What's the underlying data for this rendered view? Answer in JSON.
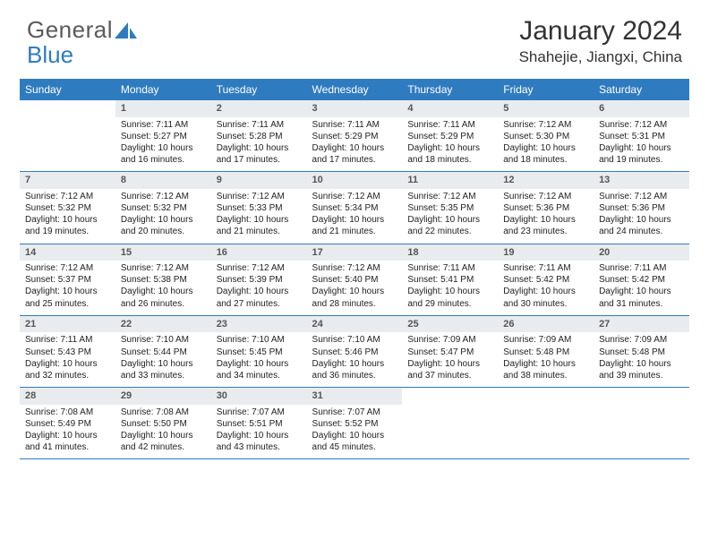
{
  "brand": {
    "part1": "General",
    "part2": "Blue",
    "text_color": "#5a5a5a",
    "accent_color": "#2f7bbf"
  },
  "title": "January 2024",
  "location": "Shahejie, Jiangxi, China",
  "header_bg": "#2f7bbf",
  "header_text_color": "#ffffff",
  "daynum_bg": "#e9ecef",
  "cell_border_color": "#2f7bbf",
  "font_family": "Arial",
  "day_headers": [
    "Sunday",
    "Monday",
    "Tuesday",
    "Wednesday",
    "Thursday",
    "Friday",
    "Saturday"
  ],
  "weeks": [
    [
      {
        "n": "",
        "sr": "",
        "ss": "",
        "dl": ""
      },
      {
        "n": "1",
        "sr": "Sunrise: 7:11 AM",
        "ss": "Sunset: 5:27 PM",
        "dl": "Daylight: 10 hours and 16 minutes."
      },
      {
        "n": "2",
        "sr": "Sunrise: 7:11 AM",
        "ss": "Sunset: 5:28 PM",
        "dl": "Daylight: 10 hours and 17 minutes."
      },
      {
        "n": "3",
        "sr": "Sunrise: 7:11 AM",
        "ss": "Sunset: 5:29 PM",
        "dl": "Daylight: 10 hours and 17 minutes."
      },
      {
        "n": "4",
        "sr": "Sunrise: 7:11 AM",
        "ss": "Sunset: 5:29 PM",
        "dl": "Daylight: 10 hours and 18 minutes."
      },
      {
        "n": "5",
        "sr": "Sunrise: 7:12 AM",
        "ss": "Sunset: 5:30 PM",
        "dl": "Daylight: 10 hours and 18 minutes."
      },
      {
        "n": "6",
        "sr": "Sunrise: 7:12 AM",
        "ss": "Sunset: 5:31 PM",
        "dl": "Daylight: 10 hours and 19 minutes."
      }
    ],
    [
      {
        "n": "7",
        "sr": "Sunrise: 7:12 AM",
        "ss": "Sunset: 5:32 PM",
        "dl": "Daylight: 10 hours and 19 minutes."
      },
      {
        "n": "8",
        "sr": "Sunrise: 7:12 AM",
        "ss": "Sunset: 5:32 PM",
        "dl": "Daylight: 10 hours and 20 minutes."
      },
      {
        "n": "9",
        "sr": "Sunrise: 7:12 AM",
        "ss": "Sunset: 5:33 PM",
        "dl": "Daylight: 10 hours and 21 minutes."
      },
      {
        "n": "10",
        "sr": "Sunrise: 7:12 AM",
        "ss": "Sunset: 5:34 PM",
        "dl": "Daylight: 10 hours and 21 minutes."
      },
      {
        "n": "11",
        "sr": "Sunrise: 7:12 AM",
        "ss": "Sunset: 5:35 PM",
        "dl": "Daylight: 10 hours and 22 minutes."
      },
      {
        "n": "12",
        "sr": "Sunrise: 7:12 AM",
        "ss": "Sunset: 5:36 PM",
        "dl": "Daylight: 10 hours and 23 minutes."
      },
      {
        "n": "13",
        "sr": "Sunrise: 7:12 AM",
        "ss": "Sunset: 5:36 PM",
        "dl": "Daylight: 10 hours and 24 minutes."
      }
    ],
    [
      {
        "n": "14",
        "sr": "Sunrise: 7:12 AM",
        "ss": "Sunset: 5:37 PM",
        "dl": "Daylight: 10 hours and 25 minutes."
      },
      {
        "n": "15",
        "sr": "Sunrise: 7:12 AM",
        "ss": "Sunset: 5:38 PM",
        "dl": "Daylight: 10 hours and 26 minutes."
      },
      {
        "n": "16",
        "sr": "Sunrise: 7:12 AM",
        "ss": "Sunset: 5:39 PM",
        "dl": "Daylight: 10 hours and 27 minutes."
      },
      {
        "n": "17",
        "sr": "Sunrise: 7:12 AM",
        "ss": "Sunset: 5:40 PM",
        "dl": "Daylight: 10 hours and 28 minutes."
      },
      {
        "n": "18",
        "sr": "Sunrise: 7:11 AM",
        "ss": "Sunset: 5:41 PM",
        "dl": "Daylight: 10 hours and 29 minutes."
      },
      {
        "n": "19",
        "sr": "Sunrise: 7:11 AM",
        "ss": "Sunset: 5:42 PM",
        "dl": "Daylight: 10 hours and 30 minutes."
      },
      {
        "n": "20",
        "sr": "Sunrise: 7:11 AM",
        "ss": "Sunset: 5:42 PM",
        "dl": "Daylight: 10 hours and 31 minutes."
      }
    ],
    [
      {
        "n": "21",
        "sr": "Sunrise: 7:11 AM",
        "ss": "Sunset: 5:43 PM",
        "dl": "Daylight: 10 hours and 32 minutes."
      },
      {
        "n": "22",
        "sr": "Sunrise: 7:10 AM",
        "ss": "Sunset: 5:44 PM",
        "dl": "Daylight: 10 hours and 33 minutes."
      },
      {
        "n": "23",
        "sr": "Sunrise: 7:10 AM",
        "ss": "Sunset: 5:45 PM",
        "dl": "Daylight: 10 hours and 34 minutes."
      },
      {
        "n": "24",
        "sr": "Sunrise: 7:10 AM",
        "ss": "Sunset: 5:46 PM",
        "dl": "Daylight: 10 hours and 36 minutes."
      },
      {
        "n": "25",
        "sr": "Sunrise: 7:09 AM",
        "ss": "Sunset: 5:47 PM",
        "dl": "Daylight: 10 hours and 37 minutes."
      },
      {
        "n": "26",
        "sr": "Sunrise: 7:09 AM",
        "ss": "Sunset: 5:48 PM",
        "dl": "Daylight: 10 hours and 38 minutes."
      },
      {
        "n": "27",
        "sr": "Sunrise: 7:09 AM",
        "ss": "Sunset: 5:48 PM",
        "dl": "Daylight: 10 hours and 39 minutes."
      }
    ],
    [
      {
        "n": "28",
        "sr": "Sunrise: 7:08 AM",
        "ss": "Sunset: 5:49 PM",
        "dl": "Daylight: 10 hours and 41 minutes."
      },
      {
        "n": "29",
        "sr": "Sunrise: 7:08 AM",
        "ss": "Sunset: 5:50 PM",
        "dl": "Daylight: 10 hours and 42 minutes."
      },
      {
        "n": "30",
        "sr": "Sunrise: 7:07 AM",
        "ss": "Sunset: 5:51 PM",
        "dl": "Daylight: 10 hours and 43 minutes."
      },
      {
        "n": "31",
        "sr": "Sunrise: 7:07 AM",
        "ss": "Sunset: 5:52 PM",
        "dl": "Daylight: 10 hours and 45 minutes."
      },
      {
        "n": "",
        "sr": "",
        "ss": "",
        "dl": ""
      },
      {
        "n": "",
        "sr": "",
        "ss": "",
        "dl": ""
      },
      {
        "n": "",
        "sr": "",
        "ss": "",
        "dl": ""
      }
    ]
  ]
}
